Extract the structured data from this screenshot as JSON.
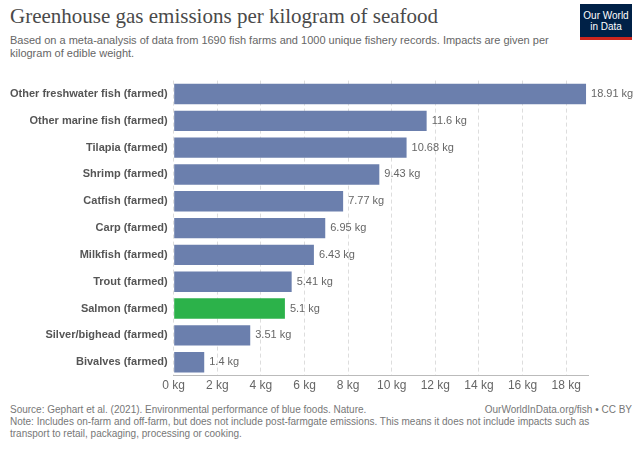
{
  "chart_data": {
    "type": "bar",
    "orientation": "horizontal",
    "title": "Greenhouse gas emissions per kilogram of seafood",
    "subtitle": "Based on a meta-analysis of data from 1690 fish farms and 1000 unique fishery records. Impacts are given per kilogram of edible weight.",
    "logo": "Our World in Data",
    "categories": [
      "Other freshwater fish (farmed)",
      "Other marine fish (farmed)",
      "Tilapia (farmed)",
      "Shrimp (farmed)",
      "Catfish (farmed)",
      "Carp (farmed)",
      "Milkfish (farmed)",
      "Trout (farmed)",
      "Salmon (farmed)",
      "Silver/bighead (farmed)",
      "Bivalves (farmed)"
    ],
    "values": [
      18.91,
      11.6,
      10.68,
      9.43,
      7.77,
      6.95,
      6.43,
      5.41,
      5.1,
      3.51,
      1.4
    ],
    "value_labels": [
      "18.91 kg",
      "11.6 kg",
      "10.68 kg",
      "9.43 kg",
      "7.77 kg",
      "6.95 kg",
      "6.43 kg",
      "5.41 kg",
      "5.1 kg",
      "3.51 kg",
      "1.4 kg"
    ],
    "colors": [
      "#6b7fad",
      "#6b7fad",
      "#6b7fad",
      "#6b7fad",
      "#6b7fad",
      "#6b7fad",
      "#6b7fad",
      "#6b7fad",
      "#2cb24a",
      "#6b7fad",
      "#6b7fad"
    ],
    "data_labels": true,
    "xlim": [
      0,
      19
    ],
    "xticks": [
      {
        "value": 0,
        "label": "0 kg"
      },
      {
        "value": 2,
        "label": "2 kg"
      },
      {
        "value": 4,
        "label": "4 kg"
      },
      {
        "value": 6,
        "label": "6 kg"
      },
      {
        "value": 8,
        "label": "8 kg"
      },
      {
        "value": 10,
        "label": "10 kg"
      },
      {
        "value": 12,
        "label": "12 kg"
      },
      {
        "value": 14,
        "label": "14 kg"
      },
      {
        "value": 16,
        "label": "16 kg"
      },
      {
        "value": 18,
        "label": "18 kg"
      }
    ],
    "grid": true,
    "source": "Source: Gephart et al. (2021). Environmental performance of blue foods. Nature.",
    "source_link": "OurWorldInData.org/fish • CC BY",
    "note": "Note: Includes on-farm and off-farm, but does not include post-farmgate emissions. This means it does not include impacts such as transport to retail, packaging, processing or cooking."
  }
}
